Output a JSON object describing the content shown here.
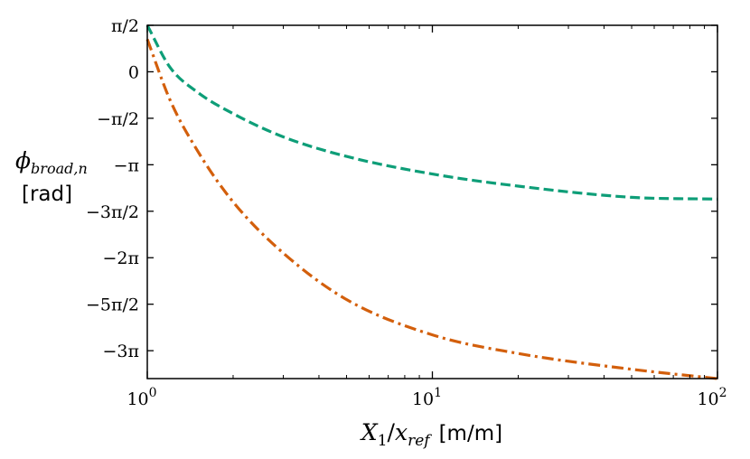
{
  "chart_data": {
    "type": "line",
    "x_scale": "log",
    "xlim": [
      1,
      100
    ],
    "ylim_in_pi": [
      -3.3,
      0.5
    ],
    "grid": false,
    "xlabel": {
      "X": "X",
      "X_sub": "1",
      "slash": "/",
      "x": "x",
      "x_sub": "ref",
      "unit": "[m/m]"
    },
    "ylabel": {
      "phi": "ϕ",
      "phi_sub": "broad,n",
      "unit": "[rad]"
    },
    "x_ticks": [
      {
        "value": 1,
        "base": "10",
        "exp": "0"
      },
      {
        "value": 10,
        "base": "10",
        "exp": "1"
      },
      {
        "value": 100,
        "base": "10",
        "exp": "2"
      }
    ],
    "y_ticks": [
      {
        "value_in_pi": 0.5,
        "label": "π/2"
      },
      {
        "value_in_pi": 0,
        "label": "0"
      },
      {
        "value_in_pi": -0.5,
        "label": "−π/2"
      },
      {
        "value_in_pi": -1,
        "label": "−π"
      },
      {
        "value_in_pi": -1.5,
        "label": "−3π/2"
      },
      {
        "value_in_pi": -2,
        "label": "−2π"
      },
      {
        "value_in_pi": -2.5,
        "label": "−5π/2"
      },
      {
        "value_in_pi": -3,
        "label": "−3π"
      }
    ],
    "series": [
      {
        "color": "#0e9e78",
        "dash": "dashed",
        "x": [
          1,
          1.2,
          1.5,
          2,
          3,
          5,
          10,
          20,
          50,
          100
        ],
        "y_in_pi": [
          0.5,
          0.05,
          -0.22,
          -0.45,
          -0.7,
          -0.91,
          -1.1,
          -1.23,
          -1.35,
          -1.37
        ]
      },
      {
        "color": "#d35f0c",
        "dash": "dashdot",
        "x": [
          1,
          1.2,
          1.5,
          2,
          3,
          5,
          10,
          20,
          50,
          100
        ],
        "y_in_pi": [
          0.35,
          -0.3,
          -0.85,
          -1.4,
          -1.95,
          -2.45,
          -2.83,
          -3.03,
          -3.2,
          -3.3
        ]
      }
    ]
  }
}
